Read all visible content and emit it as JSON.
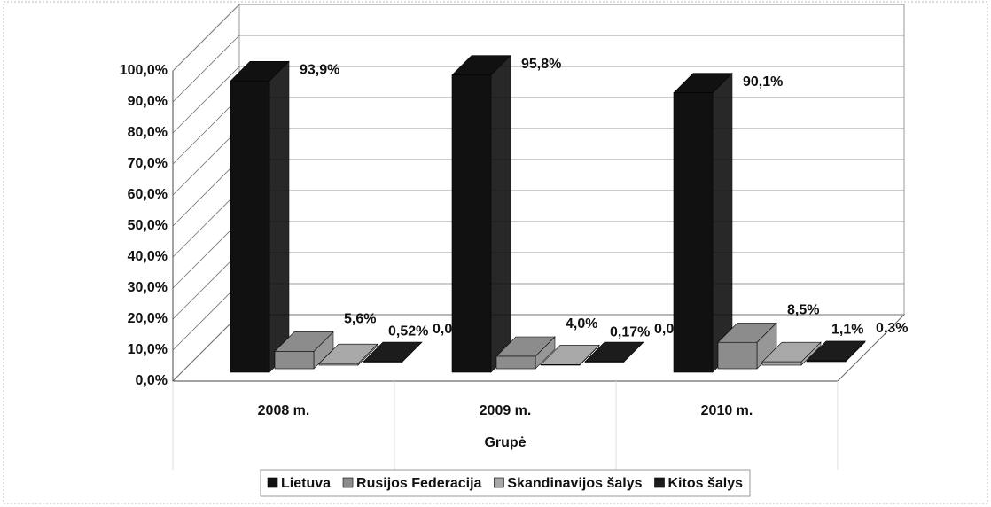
{
  "chart_data": {
    "type": "bar3d",
    "categories": [
      "2008 m.",
      "2009 m.",
      "2010 m."
    ],
    "x_label": "Grupė",
    "series": [
      {
        "name": "Lietuva",
        "color": "#111111",
        "values": [
          93.9,
          95.8,
          90.1
        ],
        "value_labels": [
          "93,9%",
          "95,8%",
          "90,1%"
        ]
      },
      {
        "name": "Rusijos Federacija",
        "color": "#8c8c8c",
        "values": [
          5.6,
          4.0,
          8.5
        ],
        "value_labels": [
          "5,6%",
          "4,0%",
          "8,5%"
        ]
      },
      {
        "name": "Skandinavijos šalys",
        "color": "#a8a8a8",
        "values": [
          0.52,
          0.17,
          1.1
        ],
        "value_labels": [
          "0,52%",
          "0,17%",
          "1,1%"
        ]
      },
      {
        "name": "Kitos šalys",
        "color": "#1c1c1c",
        "values": [
          0.0,
          0.0,
          0.3
        ],
        "value_labels": [
          "0,0%",
          "0,0%",
          "0,3%"
        ]
      }
    ],
    "ylim": [
      0,
      100
    ],
    "yticks": [
      {
        "value": 0,
        "label": "0,0%"
      },
      {
        "value": 10,
        "label": "10,0%"
      },
      {
        "value": 20,
        "label": "20,0%"
      },
      {
        "value": 30,
        "label": "30,0%"
      },
      {
        "value": 40,
        "label": "40,0%"
      },
      {
        "value": 50,
        "label": "50,0%"
      },
      {
        "value": 60,
        "label": "60,0%"
      },
      {
        "value": 70,
        "label": "70,0%"
      },
      {
        "value": 80,
        "label": "80,0%"
      },
      {
        "value": 90,
        "label": "90,0%"
      },
      {
        "value": 100,
        "label": "100,0%"
      }
    ],
    "grid": true,
    "legend": "bottom"
  }
}
